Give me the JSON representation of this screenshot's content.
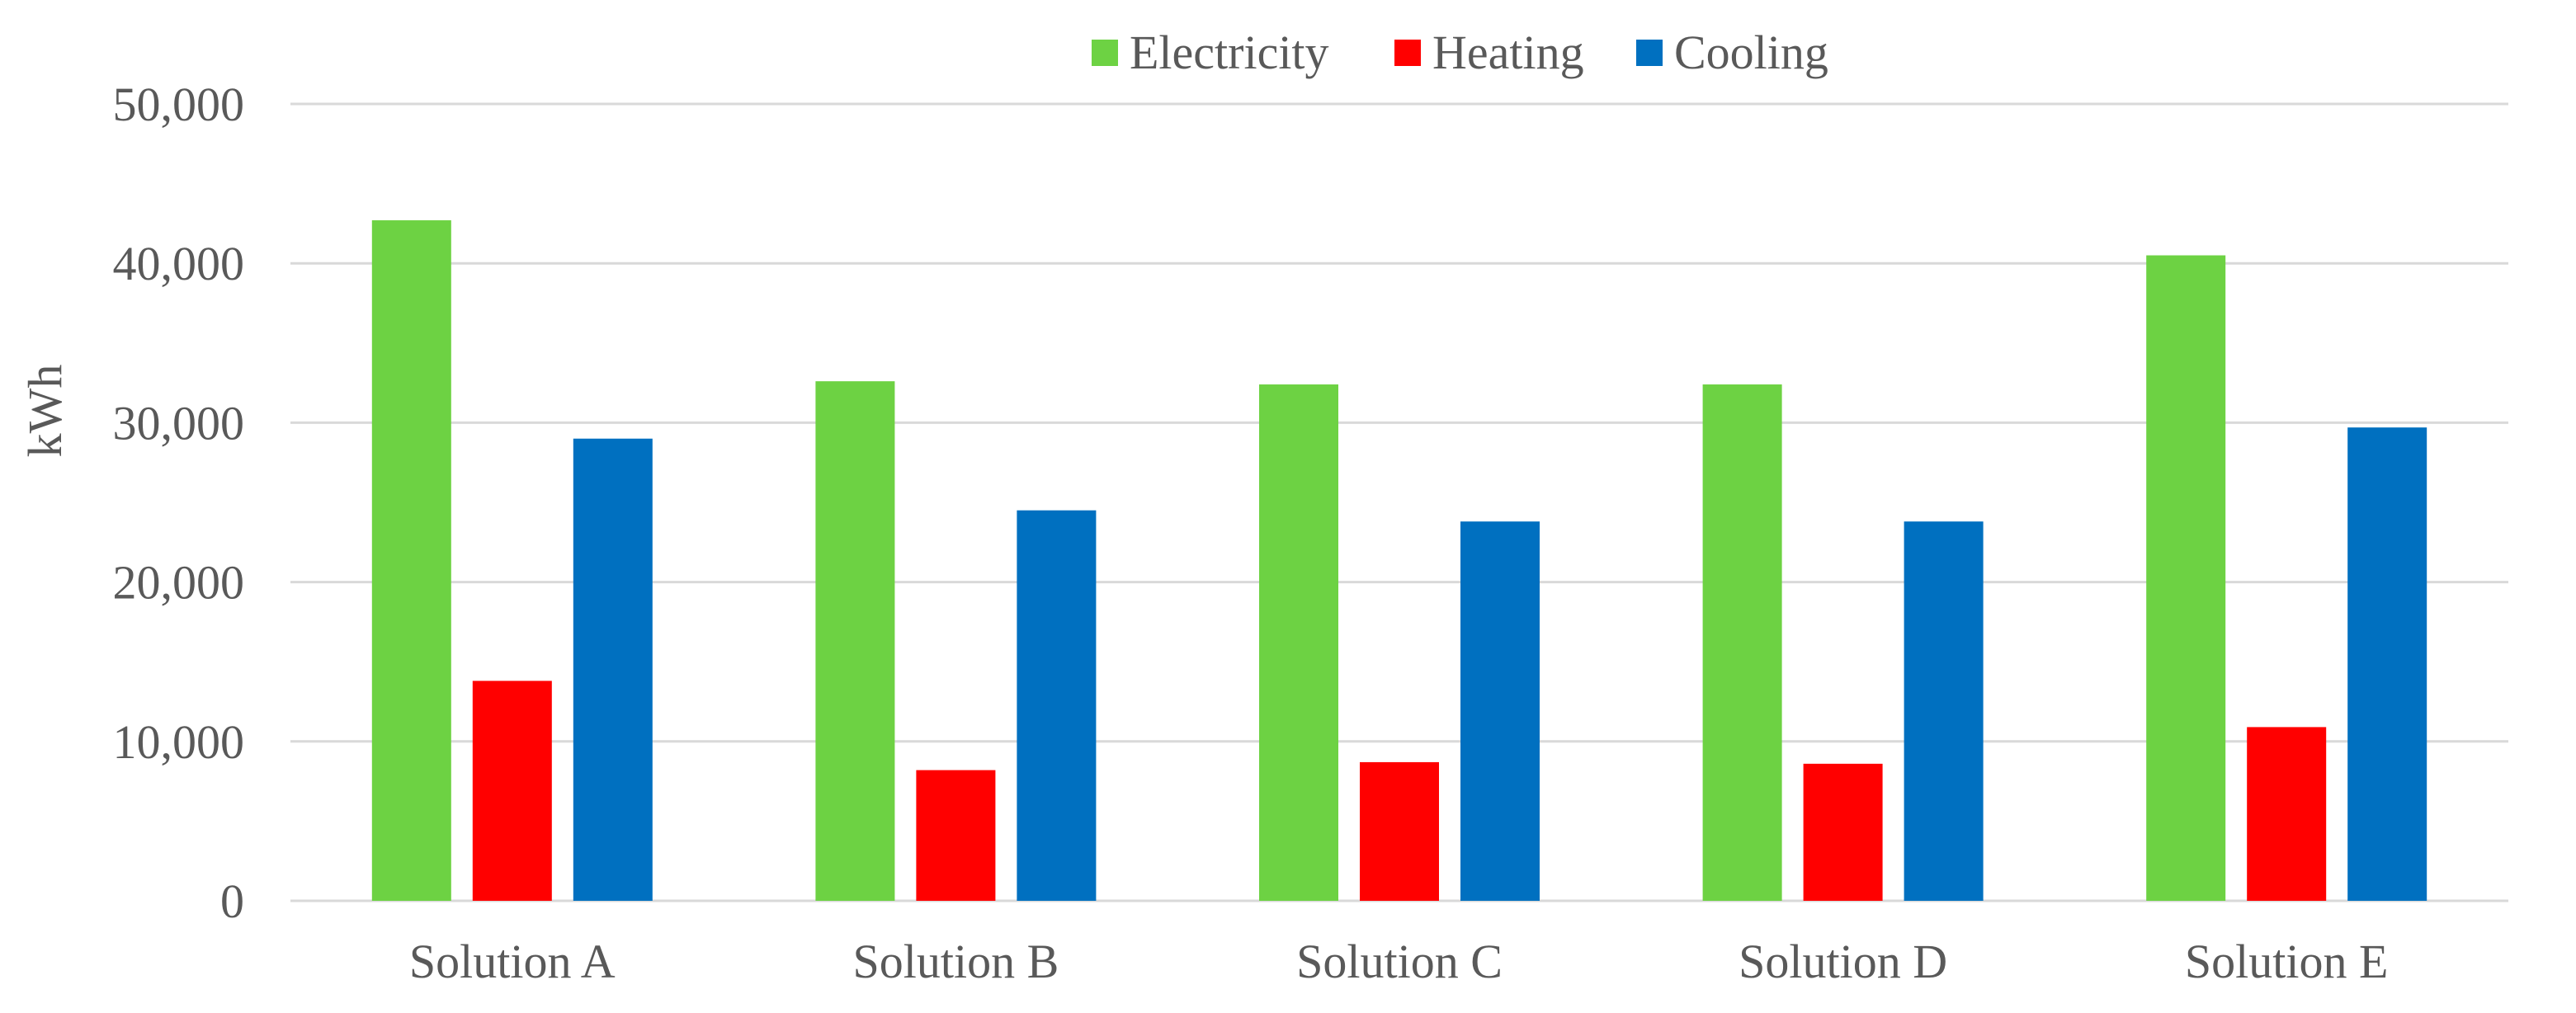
{
  "chart_data": {
    "type": "bar",
    "title": "",
    "xlabel": "",
    "ylabel": "kWh",
    "ylim": [
      0,
      50000
    ],
    "yticks": [
      0,
      10000,
      20000,
      30000,
      40000,
      50000
    ],
    "ytick_labels": [
      "0",
      "10,000",
      "20,000",
      "30,000",
      "40,000",
      "50,000"
    ],
    "grid": true,
    "legend_position": "top-center",
    "categories": [
      "Solution A",
      "Solution B",
      "Solution C",
      "Solution D",
      "Solution E"
    ],
    "series": [
      {
        "name": "Electricity",
        "color": "#6dd243",
        "values": [
          42700,
          32600,
          32400,
          32400,
          40500
        ]
      },
      {
        "name": "Heating",
        "color": "#ff0000",
        "values": [
          13800,
          8200,
          8700,
          8600,
          10900
        ]
      },
      {
        "name": "Cooling",
        "color": "#0070c0",
        "values": [
          29000,
          24500,
          23800,
          23800,
          29700
        ]
      }
    ]
  }
}
